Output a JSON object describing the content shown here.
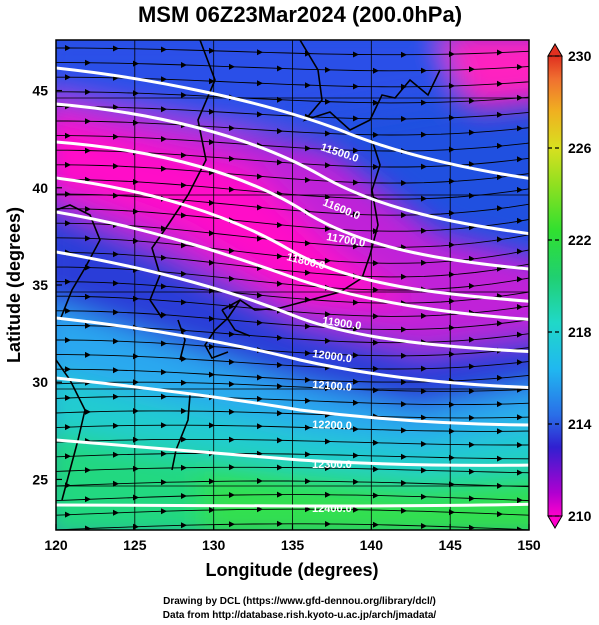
{
  "title": "MSM 06Z23Mar2024 (200.0hPa)",
  "xlabel": "Longitude (degrees)",
  "ylabel": "Latitude  (degrees)",
  "xticks": [
    120,
    125,
    130,
    135,
    140,
    145,
    150
  ],
  "yticks": [
    25,
    30,
    35,
    40,
    45
  ],
  "xlim": [
    120,
    150
  ],
  "ylim": [
    22.4,
    47.6
  ],
  "colorbar": {
    "ticks": [
      210,
      214,
      218,
      222,
      226,
      230
    ],
    "range": [
      210,
      230
    ],
    "colors": [
      "#ff00cc",
      "#b000d0",
      "#3020d0",
      "#2a6fe8",
      "#20b8f0",
      "#20d8c8",
      "#20d070",
      "#30e030",
      "#90e020",
      "#d8e020",
      "#f0b020",
      "#f07030",
      "#e03020"
    ]
  },
  "contour_labels": [
    "11500.0",
    "11600.0",
    "11700.0",
    "11800.0",
    "11900.0",
    "12000.0",
    "12100.0",
    "12200.0",
    "12300.0",
    "12400.0"
  ],
  "credits": [
    "Drawing by DCL (https://www.gfd-dennou.org/library/dcl/)",
    "Data from http://database.rish.kyoto-u.ac.jp/arch/jmadata/"
  ],
  "chart_data": {
    "type": "heatmap",
    "title": "MSM 06Z23Mar2024 (200.0hPa)",
    "xlabel": "Longitude (degrees)",
    "ylabel": "Latitude  (degrees)",
    "xlim": [
      120,
      150
    ],
    "ylim": [
      22.4,
      47.6
    ],
    "colorbar_range": [
      210,
      230
    ],
    "field": "temperature shaded, geopotential height contours, wind streamlines",
    "contour_levels": [
      11500,
      11600,
      11700,
      11800,
      11900,
      12000,
      12100,
      12200,
      12300,
      12400
    ],
    "grid": true
  }
}
